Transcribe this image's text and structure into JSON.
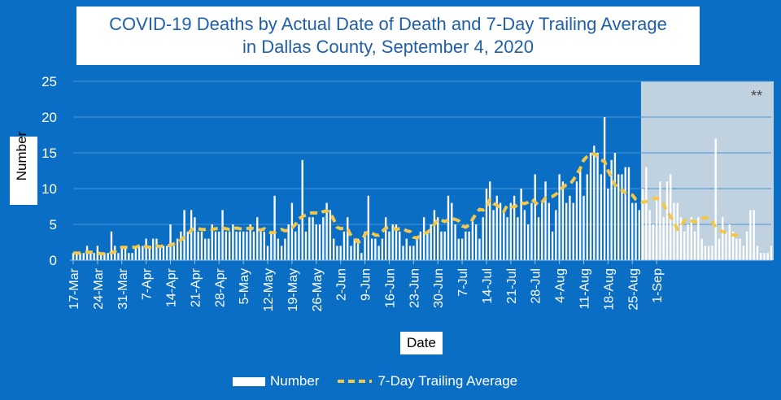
{
  "chart_data": {
    "type": "bar",
    "title_lines": [
      "COVID-19 Deaths by Actual Date of Death and 7-Day Trailing Average",
      "in Dallas County, September 4, 2020"
    ],
    "xlabel": "Date",
    "ylabel": "Number",
    "ylim": [
      0,
      25
    ],
    "yticks": [
      0,
      5,
      10,
      15,
      20,
      25
    ],
    "grid": true,
    "legend_position": "bottom",
    "x_start": "2020-03-17",
    "x_tick_labels": [
      "17-Mar",
      "24-Mar",
      "31-Mar",
      "7-Apr",
      "14-Apr",
      "21-Apr",
      "28-Apr",
      "5-May",
      "12-May",
      "19-May",
      "26-May",
      "2-Jun",
      "9-Jun",
      "16-Jun",
      "23-Jun",
      "30-Jun",
      "7-Jul",
      "14-Jul",
      "21-Jul",
      "28-Jul",
      "4-Aug",
      "11-Aug",
      "18-Aug",
      "25-Aug",
      "1-Sep"
    ],
    "shaded_region_label": "**",
    "shaded_region_start": "2020-08-28",
    "series": [
      {
        "name": "Number",
        "color": "#ffffff",
        "values": [
          1,
          1,
          1,
          1,
          2,
          1,
          1,
          2,
          1,
          1,
          1,
          4,
          2,
          1,
          2,
          2,
          1,
          1,
          2,
          2,
          2,
          3,
          2,
          3,
          3,
          2,
          2,
          2,
          5,
          2,
          3,
          4,
          7,
          4,
          7,
          6,
          4,
          4,
          3,
          3,
          5,
          4,
          4,
          7,
          4,
          4,
          5,
          4,
          4,
          4,
          4,
          5,
          4,
          6,
          4,
          4,
          2,
          4,
          9,
          3,
          2,
          3,
          5,
          8,
          4,
          5,
          14,
          4,
          6,
          6,
          5,
          5,
          6,
          8,
          7,
          3,
          2,
          2,
          4,
          6,
          2,
          3,
          3,
          1,
          4,
          9,
          3,
          3,
          2,
          3,
          6,
          4,
          5,
          5,
          4,
          2,
          3,
          2,
          2,
          3,
          4,
          6,
          4,
          5,
          7,
          6,
          4,
          4,
          9,
          8,
          5,
          3,
          3,
          4,
          4,
          6,
          5,
          3,
          6,
          10,
          11,
          7,
          9,
          8,
          7,
          6,
          8,
          9,
          6,
          10,
          7,
          5,
          8,
          12,
          6,
          8,
          11,
          8,
          4,
          7,
          12,
          11,
          8,
          9,
          8,
          11,
          13,
          9,
          12,
          15,
          16,
          15,
          12,
          20,
          10,
          14,
          15,
          12,
          12,
          13,
          13,
          8,
          8,
          7,
          10,
          13,
          7,
          5,
          9,
          11,
          6,
          11,
          12,
          8,
          8,
          6,
          4,
          5,
          6,
          4,
          6,
          3,
          2,
          2,
          2,
          17,
          3,
          6,
          4,
          5,
          4,
          3,
          3,
          2,
          4,
          7,
          7,
          2,
          1,
          1,
          1,
          2
        ]
      },
      {
        "name": "7-Day Trailing Average",
        "color": "#f2c84b",
        "values": [
          1,
          1,
          1,
          1,
          1.1,
          1.1,
          1.1,
          1,
          0.9,
          0.9,
          0.9,
          1,
          1.2,
          1.6,
          1.8,
          1.8,
          1.7,
          1.8,
          1.8,
          2,
          1.9,
          1.9,
          1.8,
          1.8,
          2,
          1.9,
          2,
          2,
          2.1,
          2.3,
          2.5,
          2.8,
          3.2,
          3.6,
          4.2,
          4.5,
          4.4,
          4.3,
          4.3,
          4.4,
          4.3,
          4.4,
          4.4,
          4.5,
          4.4,
          4.3,
          4.4,
          4.5,
          4.4,
          4.3,
          4.4,
          4.5,
          4.4,
          4.3,
          4.2,
          4.4,
          4.1,
          3.8,
          3.9,
          4.1,
          4.3,
          4.1,
          4.2,
          4.5,
          5,
          5.8,
          6.1,
          6.3,
          6.6,
          6.6,
          6.6,
          6.5,
          6.8,
          6.9,
          6.6,
          5.7,
          4.6,
          4.4,
          4.5,
          4.4,
          3.4,
          3,
          2.5,
          2.7,
          3.6,
          4,
          3.8,
          3.5,
          3.5,
          4,
          4.5,
          4.6,
          4.5,
          4.3,
          4.4,
          4.4,
          4.1,
          4,
          3.2,
          3.1,
          3.4,
          3.7,
          3.9,
          4.3,
          5,
          5.7,
          5.6,
          5.4,
          5.6,
          5.8,
          5.7,
          5.5,
          4.8,
          4.6,
          4.9,
          5.7,
          6.5,
          7.1,
          7,
          7.4,
          8.5,
          7.9,
          7.7,
          7.2,
          6.8,
          7.7,
          7.5,
          7.4,
          7.8,
          8,
          7.9,
          8.1,
          8.5,
          8.1,
          7.7,
          8.1,
          8.7,
          8.8,
          8.9,
          9.2,
          9.7,
          10.2,
          10.5,
          10.6,
          11.2,
          12,
          12.8,
          14,
          14.5,
          14.8,
          14.9,
          14.5,
          14,
          13.8,
          12.5,
          11.6,
          10.5,
          10,
          9.8,
          9.4,
          9.2,
          9.1,
          8.5,
          8.3,
          8.1,
          8.2,
          8.3,
          8.6,
          8.7,
          8.2,
          7.8,
          6.8,
          6.1,
          5.3,
          4.3,
          4.8,
          5.5,
          5.8,
          5.5,
          5.3,
          5.6,
          5.8,
          5.9,
          6,
          5.4,
          4.6,
          4.2,
          4,
          3.8,
          3.6,
          3.5,
          3.5,
          3.4
        ]
      }
    ]
  }
}
